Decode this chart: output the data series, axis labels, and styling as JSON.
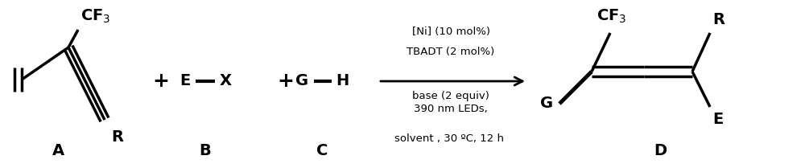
{
  "fig_width": 10.0,
  "fig_height": 2.09,
  "dpi": 100,
  "bg_color": "#ffffff",
  "text_color": "#000000",
  "lw": 2.5,
  "font_size_mol": 14,
  "font_size_cond": 9.5,
  "font_size_letter": 14,
  "conditions": {
    "line1": "[Ni] (10 mol%)",
    "line2": "TBADT (2 mol%)",
    "line3": "base (2 equiv)",
    "line4": "390 nm LEDs,",
    "line5": "solvent , 30 ºC, 12 h"
  }
}
